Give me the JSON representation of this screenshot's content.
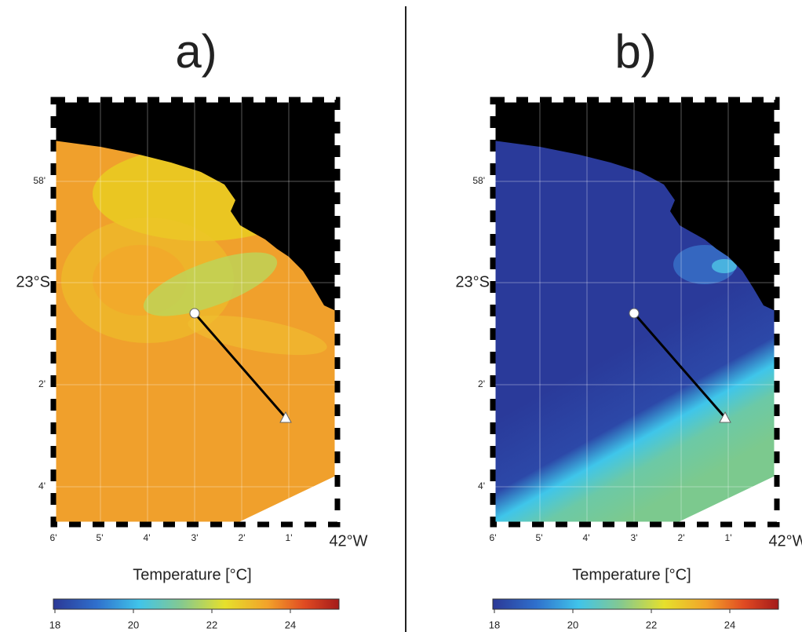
{
  "panels": [
    {
      "label": "a)",
      "y_labels": [
        "58'",
        "23°S",
        "2'",
        "4'"
      ],
      "x_labels": [
        "6'",
        "5'",
        "4'",
        "3'",
        "2'",
        "1'",
        "42°W"
      ],
      "colorbar": {
        "title": "Temperature [°C]",
        "ticks": [
          18,
          20,
          22,
          24
        ]
      }
    },
    {
      "label": "b)",
      "y_labels": [
        "58'",
        "23°S",
        "2'",
        "4'"
      ],
      "x_labels": [
        "6'",
        "5'",
        "4'",
        "3'",
        "2'",
        "1'",
        "42°W"
      ],
      "colorbar": {
        "title": "Temperature [°C]",
        "ticks": [
          18,
          20,
          22,
          24
        ]
      }
    }
  ]
}
